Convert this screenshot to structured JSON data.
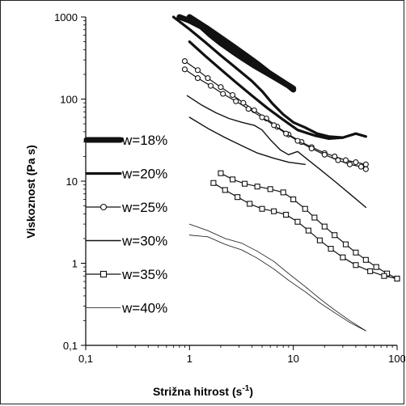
{
  "chart_data": {
    "type": "line",
    "title": "",
    "xlabel": "Strižna hitrost (s",
    "xlabel_sup": "-1",
    "xlabel_end": ")",
    "ylabel": "Viskoznost (Pa s)",
    "xscale": "log",
    "yscale": "log",
    "xlim": [
      0.1,
      100
    ],
    "ylim": [
      0.1,
      1000
    ],
    "x_ticks": [
      {
        "v": 0.1,
        "label": "0,1"
      },
      {
        "v": 1,
        "label": "1"
      },
      {
        "v": 10,
        "label": "10"
      },
      {
        "v": 100,
        "label": "100"
      }
    ],
    "y_ticks": [
      {
        "v": 0.1,
        "label": "0,1"
      },
      {
        "v": 1,
        "label": "1"
      },
      {
        "v": 10,
        "label": "10"
      },
      {
        "v": 100,
        "label": "100"
      },
      {
        "v": 1000,
        "label": "1000"
      }
    ],
    "grid": false,
    "legend_position": "left",
    "series": [
      {
        "name": "w=18%",
        "style": "heavy",
        "x": [
          0.8,
          1.0,
          1.3,
          1.6,
          2.0,
          2.6,
          3.3,
          4.2,
          5.5,
          7.0,
          9.0,
          10.0
        ],
        "y": [
          1000,
          900,
          760,
          600,
          480,
          380,
          310,
          255,
          210,
          175,
          145,
          130
        ],
        "x2": [
          1.0,
          1.5,
          2.0,
          2.7,
          3.5,
          4.5,
          5.8,
          7.5,
          10.0
        ],
        "y2": [
          1000,
          720,
          560,
          430,
          340,
          270,
          210,
          170,
          135
        ]
      },
      {
        "name": "w=20%",
        "style": "bold",
        "x": [
          0.7,
          1.0,
          1.4,
          2.0,
          2.8,
          4.0,
          5.0,
          6.3,
          8.0,
          10.0,
          13.0,
          17.0,
          22.0,
          30.0,
          40.0,
          50.0
        ],
        "y": [
          1000,
          710,
          500,
          340,
          240,
          165,
          125,
          88,
          65,
          52,
          45,
          38,
          35,
          34,
          38,
          35
        ],
        "x2": [
          1.0,
          1.4,
          2.0,
          2.8,
          4.0,
          5.6,
          8.0,
          11.0,
          16.0,
          22.0,
          30.0
        ],
        "y2": [
          500,
          340,
          230,
          160,
          110,
          78,
          56,
          42,
          36,
          33,
          34
        ]
      },
      {
        "name": "w=25%",
        "style": "circle",
        "x": [
          0.9,
          1.2,
          1.5,
          2.0,
          2.6,
          3.3,
          4.2,
          5.5,
          7.0,
          9.0,
          12.0,
          15.0,
          20.0,
          25.0,
          32.0,
          40.0,
          50.0
        ],
        "y": [
          290,
          225,
          180,
          140,
          112,
          90,
          73,
          58,
          46,
          37,
          30,
          26,
          22,
          20,
          18,
          17,
          16
        ],
        "x2": [
          0.9,
          1.2,
          1.6,
          2.1,
          2.8,
          3.7,
          5.0,
          6.5,
          8.5,
          11.0,
          15.0,
          20.0,
          27.0,
          35.0,
          45.0,
          50.0
        ],
        "y2": [
          230,
          180,
          145,
          116,
          94,
          76,
          60,
          48,
          38,
          31,
          25,
          21,
          18,
          16,
          15,
          14
        ]
      },
      {
        "name": "w=30%",
        "style": "medium",
        "x": [
          0.95,
          1.3,
          1.8,
          2.4,
          3.2,
          4.2,
          5.0,
          6.0,
          7.5,
          9.0,
          11.0,
          14.0,
          18.0,
          25.0,
          35.0,
          50.0
        ],
        "y": [
          110,
          85,
          68,
          58,
          52,
          48,
          42,
          32,
          24,
          21,
          23,
          18,
          14,
          10,
          7,
          4.8
        ],
        "x2": [
          1.0,
          1.5,
          2.2,
          3.2,
          4.5,
          6.5,
          9.0,
          13.0
        ],
        "y2": [
          60,
          44,
          34,
          27,
          22,
          19,
          17,
          16
        ]
      },
      {
        "name": "w=35%",
        "style": "square",
        "x": [
          2.0,
          2.6,
          3.4,
          4.5,
          6.0,
          8.0,
          10.0,
          13.0,
          16.0,
          20.0,
          25.0,
          32.0,
          40.0,
          50.0,
          63.0,
          80.0,
          100.0
        ],
        "y": [
          12.5,
          10.5,
          9.3,
          8.6,
          8.0,
          7.3,
          6.0,
          4.6,
          3.6,
          2.8,
          2.2,
          1.7,
          1.35,
          1.1,
          0.9,
          0.75,
          0.65
        ],
        "x2": [
          1.7,
          2.2,
          2.9,
          3.8,
          5.0,
          6.5,
          8.5,
          11.0,
          14.0,
          18.0,
          23.0,
          30.0,
          40.0,
          55.0,
          75.0,
          100.0
        ],
        "y2": [
          9.5,
          7.8,
          6.4,
          5.3,
          4.6,
          4.3,
          3.9,
          3.2,
          2.5,
          1.9,
          1.5,
          1.18,
          0.95,
          0.8,
          0.7,
          0.65
        ]
      },
      {
        "name": "w=40%",
        "style": "thin",
        "x": [
          1.0,
          1.5,
          2.2,
          3.2,
          4.5,
          6.5,
          9.0,
          13.0,
          18.0,
          25.0,
          35.0,
          50.0
        ],
        "y": [
          3.0,
          2.5,
          2.0,
          1.75,
          1.4,
          1.05,
          0.75,
          0.52,
          0.37,
          0.27,
          0.2,
          0.15
        ],
        "x2": [
          1.0,
          1.5,
          2.2,
          3.2,
          4.5,
          6.5,
          9.0,
          13.0,
          18.0,
          25.0,
          35.0,
          50.0
        ],
        "y2": [
          2.2,
          2.1,
          1.7,
          1.45,
          1.15,
          0.85,
          0.62,
          0.45,
          0.33,
          0.25,
          0.19,
          0.15
        ]
      }
    ]
  }
}
